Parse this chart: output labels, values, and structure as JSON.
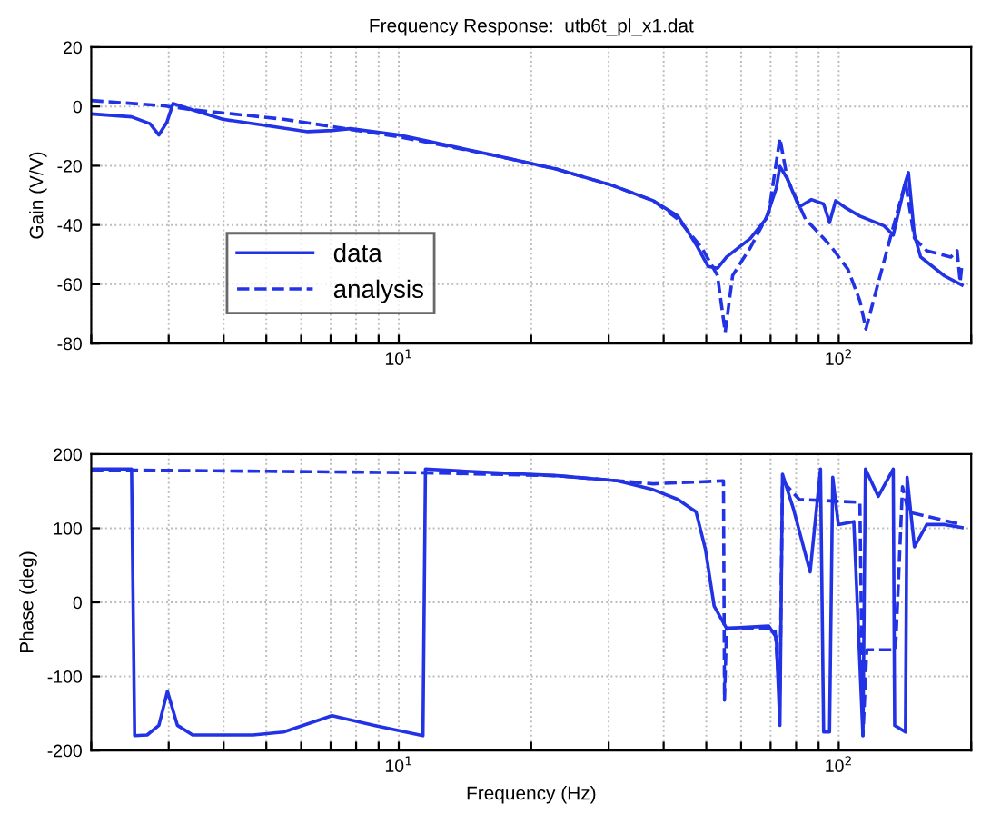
{
  "chart_data": [
    {
      "type": "line",
      "title": "Frequency Response:  utb6t_pl_x1.dat",
      "ylabel": "Gain (V/V)",
      "log": "x",
      "grid": true,
      "legend": "bottom left",
      "xlim": [
        2,
        200
      ],
      "xticks": [
        {
          "value": 2,
          "label": null
        },
        {
          "value": 3,
          "label": null
        },
        {
          "value": 4,
          "label": null
        },
        {
          "value": 5,
          "label": null
        },
        {
          "value": 6,
          "label": null
        },
        {
          "value": 7,
          "label": null
        },
        {
          "value": 8,
          "label": null
        },
        {
          "value": 9,
          "label": null
        },
        {
          "value": 10,
          "label": "10$^{1}$"
        },
        {
          "value": 20,
          "label": null
        },
        {
          "value": 30,
          "label": null
        },
        {
          "value": 40,
          "label": null
        },
        {
          "value": 50,
          "label": null
        },
        {
          "value": 60,
          "label": null
        },
        {
          "value": 70,
          "label": null
        },
        {
          "value": 80,
          "label": null
        },
        {
          "value": 90,
          "label": null
        },
        {
          "value": 100,
          "label": "10$^{2}$"
        },
        {
          "value": 200,
          "label": null
        }
      ],
      "ylim": [
        -80,
        20
      ],
      "yticks": [
        -80,
        -60,
        -40,
        -20,
        0,
        20
      ],
      "series": [
        {
          "name": "data",
          "color": "#2233e6",
          "line_style": "solid",
          "x": [
            2,
            2.47,
            2.72,
            2.85,
            2.97,
            3.07,
            3.29,
            3.98,
            4.97,
            6.21,
            7.05,
            7.76,
            10,
            16.6,
            22.9,
            30.4,
            37.9,
            43.1,
            47.4,
            50.5,
            53,
            55.6,
            63,
            68.3,
            72.1,
            73.5,
            76.4,
            81.3,
            86.7,
            92.4,
            95.3,
            98.4,
            103.2,
            111.7,
            126.8,
            133,
            141.8,
            144,
            148.6,
            153.5,
            174,
            190.6
          ],
          "values": [
            -2.5,
            -3.5,
            -5.8,
            -9.6,
            -5.4,
            1,
            -0.5,
            -4.3,
            -6.4,
            -8.5,
            -8.1,
            -7.5,
            -9.6,
            -16.6,
            -21.2,
            -26.5,
            -31.8,
            -37,
            -46.6,
            -54,
            -54.6,
            -50.8,
            -44.5,
            -38,
            -27.6,
            -20.2,
            -24.4,
            -33.9,
            -31.4,
            -32.9,
            -39.2,
            -31.8,
            -34,
            -37,
            -40.3,
            -43.4,
            -25.5,
            -22.3,
            -43.4,
            -50.8,
            -57.2,
            -60.3
          ]
        },
        {
          "name": "analysis",
          "color": "#2233e6",
          "line_style": "dashed",
          "x": [
            2,
            2.9,
            3.4,
            5.47,
            10,
            16.6,
            22.9,
            30.4,
            37.9,
            43.1,
            48.8,
            53,
            55.2,
            57.4,
            63,
            69.3,
            73.5,
            76.4,
            84,
            95.3,
            105,
            111.7,
            115.3,
            121,
            130.9,
            141.8,
            148.6,
            158.5,
            179.8,
            185.8,
            188.8,
            190.6
          ],
          "values": [
            2,
            0.3,
            -1.1,
            -4.3,
            -10.2,
            -16.6,
            -21.2,
            -26.5,
            -31.8,
            -38,
            -47.6,
            -57,
            -76.2,
            -57,
            -47.6,
            -36,
            -10.7,
            -24.4,
            -38,
            -46.6,
            -55,
            -65.6,
            -75.1,
            -63.4,
            -44.5,
            -25.5,
            -44.5,
            -48.7,
            -50.8,
            -48.7,
            -59.3,
            -53
          ]
        }
      ]
    },
    {
      "type": "line",
      "xlabel": "Frequency (Hz)",
      "ylabel": "Phase (deg)",
      "log": "x",
      "grid": true,
      "xlim": [
        2,
        200
      ],
      "xticks": [
        {
          "value": 2,
          "label": null
        },
        {
          "value": 3,
          "label": null
        },
        {
          "value": 4,
          "label": null
        },
        {
          "value": 5,
          "label": null
        },
        {
          "value": 6,
          "label": null
        },
        {
          "value": 7,
          "label": null
        },
        {
          "value": 8,
          "label": null
        },
        {
          "value": 9,
          "label": null
        },
        {
          "value": 10,
          "label": "10$^{1}$"
        },
        {
          "value": 20,
          "label": null
        },
        {
          "value": 30,
          "label": null
        },
        {
          "value": 40,
          "label": null
        },
        {
          "value": 50,
          "label": null
        },
        {
          "value": 60,
          "label": null
        },
        {
          "value": 70,
          "label": null
        },
        {
          "value": 80,
          "label": null
        },
        {
          "value": 90,
          "label": null
        },
        {
          "value": 100,
          "label": "10$^{2}$"
        },
        {
          "value": 200,
          "label": null
        }
      ],
      "ylim": [
        -200,
        200
      ],
      "yticks": [
        -200,
        -100,
        0,
        100,
        200
      ],
      "series": [
        {
          "color": "#2233e6",
          "line_style": "solid",
          "x": [
            2,
            2.47,
            2.51,
            2.68,
            2.85,
            2.98,
            3.14,
            3.4,
            4.66,
            5.47,
            7.05,
            8.8,
            11.35,
            11.5,
            14.2,
            22.9,
            31.4,
            37.9,
            43.1,
            47.4,
            49.8,
            52.1,
            55.6,
            69.3,
            72.1,
            73.5,
            74.5,
            78.9,
            86.1,
            90.9,
            92.4,
            95.3,
            96.9,
            99.8,
            108.2,
            113.5,
            115,
            123,
            133,
            134,
            141.8,
            143,
            148.6,
            158.5,
            174,
            190.6
          ],
          "values": [
            180,
            180,
            -180,
            -179,
            -166,
            -120,
            -166,
            -179,
            -179,
            -175,
            -153,
            -166,
            -180,
            180,
            177,
            171,
            164,
            152,
            139,
            122,
            71,
            -5,
            -35,
            -32,
            -47,
            -166,
            173,
            126,
            41,
            180,
            -175,
            -175,
            169,
            105,
            109,
            -180,
            180,
            143,
            180,
            -166,
            -175,
            169,
            75,
            105,
            105,
            101
          ]
        },
        {
          "color": "#2233e6",
          "line_style": "dashed",
          "x": [
            2,
            11.35,
            22.9,
            37.9,
            54.7,
            55,
            55.6,
            71.6,
            73.5,
            74.5,
            81.3,
            111.7,
            113.5,
            115.8,
            134.6,
            139.6,
            144,
            190.6
          ],
          "values": [
            179,
            175,
            171,
            160,
            164,
            -132,
            -35,
            -35,
            -124,
            164,
            139,
            135,
            -180,
            -64,
            -64,
            156,
            122,
            105
          ]
        }
      ]
    }
  ]
}
